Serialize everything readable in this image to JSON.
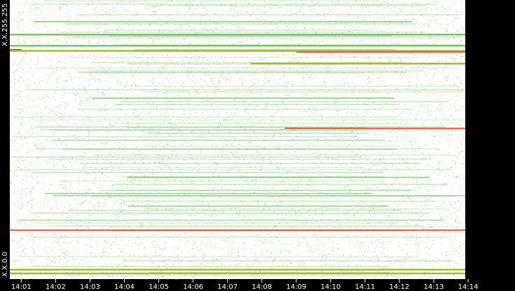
{
  "chart_data": {
    "type": "heatmap",
    "y_range_labels": {
      "top": "X.X.255.255",
      "bottom": "X.X.0.0"
    },
    "x_ticks": [
      "14:01",
      "14:02",
      "14:03",
      "14:04",
      "14:05",
      "14:06",
      "14:07",
      "14:08",
      "14:09",
      "14:10",
      "14:11",
      "14:12",
      "14:13",
      "14:14"
    ],
    "x_range": [
      "14:00:40",
      "14:13:55"
    ],
    "y_range": [
      0,
      65535
    ],
    "colors": {
      "background": "#000000",
      "plot_background": "#ffffff",
      "low": "#7cc36a",
      "medium": "#a8b832",
      "high": "#d23a1e"
    },
    "dense_bands": [
      {
        "y": 1320,
        "intensity": "medium",
        "start": "14:00:40",
        "end": "14:13:55"
      },
      {
        "y": 2200,
        "intensity": "medium",
        "start": "14:00:40",
        "end": "14:13:55"
      },
      {
        "y": 11500,
        "intensity": "high",
        "start": "14:00:40",
        "end": "14:13:55"
      },
      {
        "y": 35400,
        "intensity": "high",
        "start": "14:08:40",
        "end": "14:13:55"
      },
      {
        "y": 50600,
        "intensity": "medium",
        "start": "14:07:40",
        "end": "14:13:55"
      },
      {
        "y": 53300,
        "intensity": "high",
        "start": "14:09:00",
        "end": "14:13:55"
      },
      {
        "y": 53900,
        "intensity": "high",
        "start": "14:00:40",
        "end": "14:01:00"
      },
      {
        "y": 53600,
        "intensity": "medium",
        "start": "14:00:40",
        "end": "14:13:55"
      },
      {
        "y": 54800,
        "intensity": "low",
        "start": "14:00:40",
        "end": "14:13:55"
      },
      {
        "y": 57400,
        "intensity": "low",
        "start": "14:00:40",
        "end": "14:13:55"
      }
    ]
  }
}
